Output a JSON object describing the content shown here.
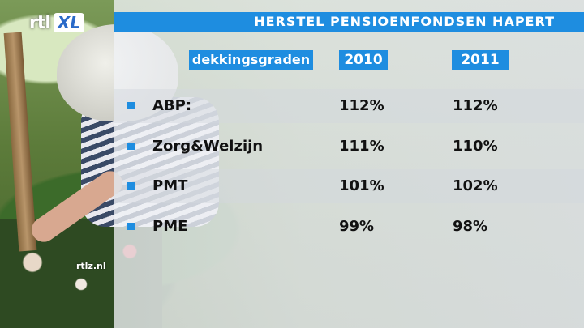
{
  "logo": {
    "text_rtl": "rtl",
    "text_xl": "XL"
  },
  "watermark": "rtlz.nl",
  "title": "HERSTEL PENSIOENFONDSEN HAPERT",
  "headers": {
    "label": "dekkingsgraden",
    "col1": "2010",
    "col2": "2011"
  },
  "rows": [
    {
      "name": "ABP:",
      "v2010": "112%",
      "v2011": "112%"
    },
    {
      "name": "Zorg&Welzijn",
      "v2010": "111%",
      "v2011": "110%"
    },
    {
      "name": "PMT",
      "v2010": "101%",
      "v2011": "102%"
    },
    {
      "name": "PME",
      "v2010": "99%",
      "v2011": "98%"
    }
  ],
  "colors": {
    "accent": "#1e8de0",
    "text": "#111111"
  }
}
